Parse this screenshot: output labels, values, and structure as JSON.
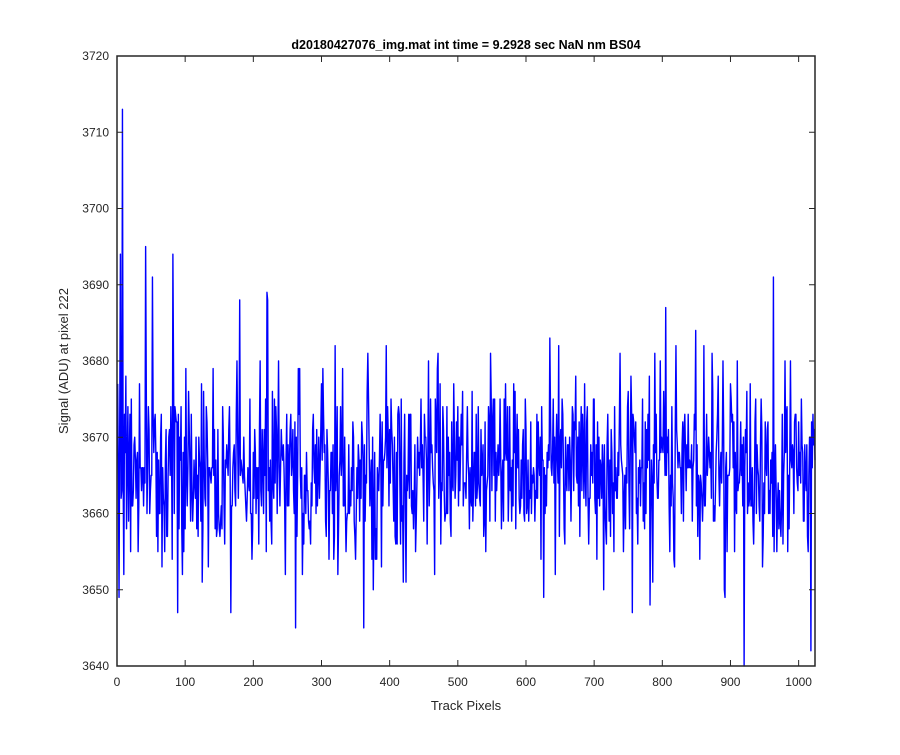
{
  "chart_data": {
    "type": "line",
    "title": "d20180427076_img.mat int time = 9.2928 sec  NaN nm BS04",
    "xlabel": "Track Pixels",
    "ylabel": "Signal (ADU) at pixel 222",
    "xlim": [
      0,
      1024
    ],
    "ylim": [
      3640,
      3720
    ],
    "xticks": [
      "0",
      "100",
      "200",
      "300",
      "400",
      "500",
      "600",
      "700",
      "800",
      "900",
      "1000"
    ],
    "yticks": [
      "3640",
      "3650",
      "3660",
      "3670",
      "3680",
      "3690",
      "3700",
      "3710",
      "3720"
    ],
    "grid": false,
    "series": [
      {
        "color": "#0000ff",
        "x_start": 1,
        "x_step": 1,
        "count": 1024,
        "mean": 3666,
        "std": 6.5,
        "min": 3640,
        "max": 3713,
        "peaks": [
          {
            "x": 3,
            "y": 3649
          },
          {
            "x": 5,
            "y": 3694
          },
          {
            "x": 8,
            "y": 3713
          },
          {
            "x": 10,
            "y": 3652
          },
          {
            "x": 42,
            "y": 3695
          },
          {
            "x": 52,
            "y": 3691
          },
          {
            "x": 82,
            "y": 3694
          },
          {
            "x": 89,
            "y": 3647
          },
          {
            "x": 180,
            "y": 3688
          },
          {
            "x": 262,
            "y": 3645
          },
          {
            "x": 362,
            "y": 3645
          },
          {
            "x": 920,
            "y": 3640
          },
          {
            "x": 963,
            "y": 3691
          },
          {
            "x": 1018,
            "y": 3642
          }
        ]
      }
    ]
  }
}
